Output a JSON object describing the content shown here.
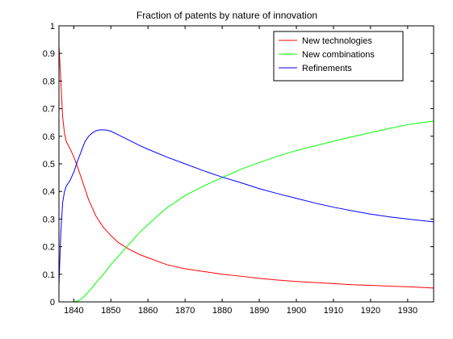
{
  "chart_data": {
    "type": "line",
    "title": "Fraction of patents by nature of innovation",
    "xlabel": "",
    "ylabel": "",
    "xlim": [
      1836,
      1937
    ],
    "ylim": [
      0,
      1
    ],
    "grid": false,
    "legend_position": "top-right",
    "x_ticks": [
      1840,
      1850,
      1860,
      1870,
      1880,
      1890,
      1900,
      1910,
      1920,
      1930
    ],
    "y_ticks": [
      0,
      0.1,
      0.2,
      0.3,
      0.4,
      0.5,
      0.6,
      0.7,
      0.8,
      0.9,
      1
    ],
    "x_tick_labels": [
      "1840",
      "1850",
      "1860",
      "1870",
      "1880",
      "1890",
      "1900",
      "1910",
      "1920",
      "1930"
    ],
    "y_tick_labels": [
      "0",
      "0.1",
      "0.2",
      "0.3",
      "0.4",
      "0.5",
      "0.6",
      "0.7",
      "0.8",
      "0.9",
      "1"
    ],
    "series": [
      {
        "name": "New technologies",
        "color": "#ff0000",
        "x": [
          1836,
          1836.5,
          1837,
          1837.5,
          1838,
          1839,
          1840,
          1841,
          1842,
          1843,
          1844,
          1845,
          1846,
          1848,
          1850,
          1852,
          1855,
          1858,
          1860,
          1865,
          1870,
          1875,
          1880,
          1885,
          1890,
          1895,
          1900,
          1905,
          1910,
          1915,
          1920,
          1925,
          1930,
          1937
        ],
        "values": [
          0.93,
          0.8,
          0.67,
          0.61,
          0.58,
          0.555,
          0.525,
          0.49,
          0.45,
          0.41,
          0.37,
          0.34,
          0.31,
          0.27,
          0.24,
          0.215,
          0.19,
          0.17,
          0.16,
          0.135,
          0.12,
          0.11,
          0.1,
          0.093,
          0.085,
          0.079,
          0.074,
          0.07,
          0.066,
          0.062,
          0.06,
          0.057,
          0.055,
          0.05
        ]
      },
      {
        "name": "New combinations",
        "color": "#00ff00",
        "x": [
          1840,
          1841,
          1842,
          1843,
          1844,
          1845,
          1846,
          1848,
          1850,
          1852,
          1855,
          1858,
          1860,
          1865,
          1870,
          1875,
          1880,
          1885,
          1890,
          1895,
          1900,
          1905,
          1910,
          1915,
          1920,
          1925,
          1930,
          1937
        ],
        "values": [
          0,
          0.003,
          0.01,
          0.022,
          0.037,
          0.052,
          0.07,
          0.1,
          0.135,
          0.165,
          0.21,
          0.255,
          0.28,
          0.34,
          0.385,
          0.42,
          0.45,
          0.48,
          0.505,
          0.528,
          0.548,
          0.565,
          0.582,
          0.598,
          0.613,
          0.628,
          0.642,
          0.655
        ]
      },
      {
        "name": "Refinements",
        "color": "#0000ff",
        "x": [
          1836,
          1836.5,
          1837,
          1837.5,
          1838,
          1839,
          1840,
          1841,
          1842,
          1843,
          1844,
          1845,
          1846,
          1847,
          1848,
          1849,
          1850,
          1852,
          1855,
          1858,
          1860,
          1865,
          1870,
          1875,
          1880,
          1885,
          1890,
          1895,
          1900,
          1905,
          1910,
          1915,
          1920,
          1925,
          1930,
          1937
        ],
        "values": [
          0.06,
          0.25,
          0.36,
          0.4,
          0.42,
          0.44,
          0.47,
          0.51,
          0.545,
          0.58,
          0.6,
          0.612,
          0.62,
          0.623,
          0.623,
          0.622,
          0.618,
          0.605,
          0.585,
          0.565,
          0.553,
          0.525,
          0.5,
          0.475,
          0.452,
          0.432,
          0.41,
          0.392,
          0.375,
          0.358,
          0.343,
          0.33,
          0.318,
          0.308,
          0.3,
          0.29
        ]
      }
    ]
  }
}
